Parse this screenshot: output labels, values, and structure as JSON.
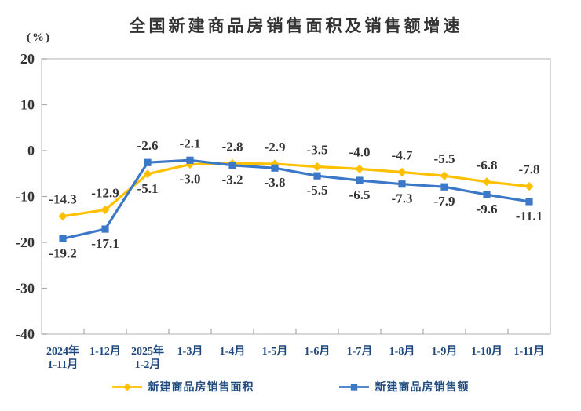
{
  "title": "全国新建商品房销售面积及销售额增速",
  "chart_data": {
    "type": "line",
    "title": "全国新建商品房销售面积及销售额增速",
    "ylabel": "(%)",
    "categories": [
      "2024年\n1-11月",
      "1-12月",
      "2025年\n1-2月",
      "1-3月",
      "1-4月",
      "1-5月",
      "1-6月",
      "1-7月",
      "1-8月",
      "1-9月",
      "1-10月",
      "1-11月"
    ],
    "series": [
      {
        "name": "新建商品房销售面积",
        "marker": "diamond",
        "color": "#FFC000",
        "values": [
          -14.3,
          -12.9,
          -5.1,
          -3.0,
          -2.8,
          -2.9,
          -3.5,
          -4.0,
          -4.7,
          -5.5,
          -6.8,
          -7.8
        ]
      },
      {
        "name": "新建商品房销售额",
        "marker": "square",
        "color": "#3C78C8",
        "values": [
          -19.2,
          -17.1,
          -2.6,
          -2.1,
          -3.2,
          -3.8,
          -5.5,
          -6.5,
          -7.3,
          -7.9,
          -9.6,
          -11.1
        ]
      }
    ],
    "ylim": [
      -40,
      20
    ],
    "yticks": [
      20,
      10,
      0,
      -10,
      -20,
      -30,
      -40
    ],
    "grid": false,
    "legend_position": "bottom",
    "data_labels": true,
    "colors": {
      "axis_line": "#C8C8C8",
      "tick_mark": "#ABABAB",
      "x_label": "#1F497D",
      "y_label": "#333333",
      "data_label": "#333333",
      "title": "#333333",
      "legend_text": "#1F497D"
    }
  }
}
